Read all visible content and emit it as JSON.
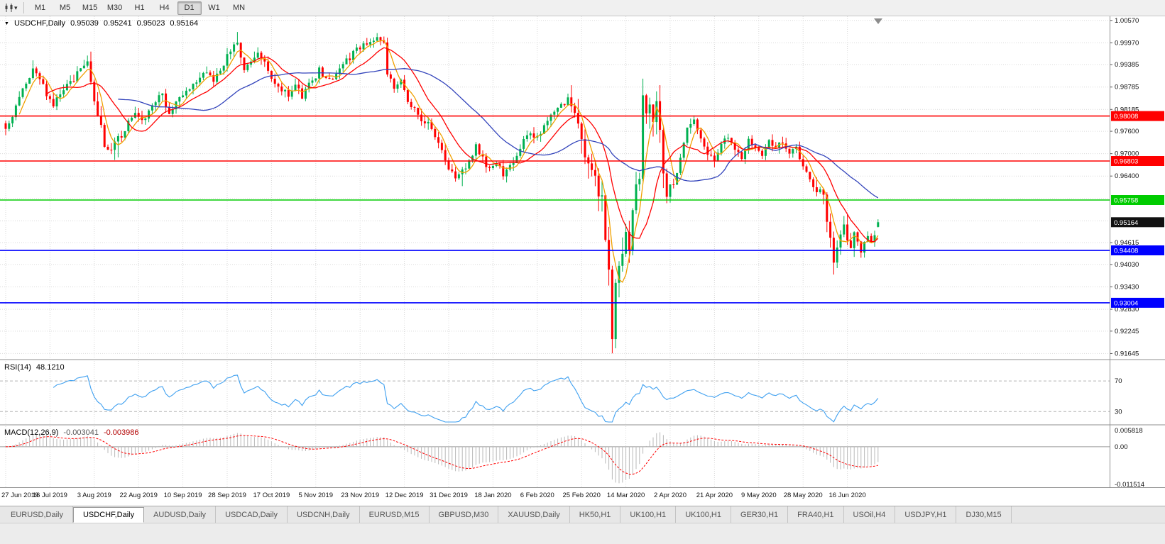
{
  "toolbar": {
    "timeframes": [
      "M1",
      "M5",
      "M15",
      "M30",
      "H1",
      "H4",
      "D1",
      "W1",
      "MN"
    ],
    "active_timeframe": "D1"
  },
  "icons": {
    "collapse_pane": "▼",
    "chart_menu_caret": "▾",
    "shift_marker": "▼"
  },
  "chart_data": {
    "type": "candlestick",
    "symbol": "USDCHF",
    "period": "Daily",
    "title": {
      "symbol_period": "USDCHF,Daily",
      "open": "0.95039",
      "high": "0.95241",
      "low": "0.95023",
      "close": "0.95164"
    },
    "price_axis": {
      "max": 1.0068,
      "min": 0.9152,
      "ticks": [
        [
          "1.00570",
          1.0057
        ],
        [
          "0.99970",
          0.9997
        ],
        [
          "0.99385",
          0.99385
        ],
        [
          "0.98785",
          0.98785
        ],
        [
          "0.98185",
          0.98185
        ],
        [
          "0.97600",
          0.976
        ],
        [
          "0.97000",
          0.97
        ],
        [
          "0.96400",
          0.964
        ],
        [
          "0.94615",
          0.94615
        ],
        [
          "0.94030",
          0.9403
        ],
        [
          "0.93430",
          0.9343
        ],
        [
          "0.92830",
          0.9283
        ],
        [
          "0.92245",
          0.92245
        ],
        [
          "0.91645",
          0.91645
        ]
      ],
      "hidden_ticks": [
        0.958,
        0.952
      ]
    },
    "date_axis": {
      "labels": [
        "27 Jun 2019",
        "16 Jul 2019",
        "3 Aug 2019",
        "22 Aug 2019",
        "10 Sep 2019",
        "28 Sep 2019",
        "17 Oct 2019",
        "5 Nov 2019",
        "23 Nov 2019",
        "12 Dec 2019",
        "31 Dec 2019",
        "18 Jan 2020",
        "6 Feb 2020",
        "25 Feb 2020",
        "14 Mar 2020",
        "2 Apr 2020",
        "21 Apr 2020",
        "9 May 2020",
        "28 May 2020",
        "16 Jun 2020"
      ],
      "bars_per_label": 13
    },
    "candles": {
      "count": 257,
      "up_color": "#00b050",
      "down_color": "#ff0000",
      "last_ohlc": [
        0.95039,
        0.95241,
        0.95023,
        0.95164
      ],
      "anchors": [
        [
          0,
          0.9768
        ],
        [
          3,
          0.9825
        ],
        [
          6,
          0.9888
        ],
        [
          8,
          0.9932
        ],
        [
          10,
          0.9895
        ],
        [
          12,
          0.9862
        ],
        [
          14,
          0.983
        ],
        [
          17,
          0.9868
        ],
        [
          20,
          0.99
        ],
        [
          24,
          0.9948
        ],
        [
          25,
          0.9885
        ],
        [
          27,
          0.9798
        ],
        [
          29,
          0.9728
        ],
        [
          31,
          0.9712
        ],
        [
          33,
          0.974
        ],
        [
          35,
          0.9766
        ],
        [
          38,
          0.9812
        ],
        [
          40,
          0.9788
        ],
        [
          42,
          0.9816
        ],
        [
          44,
          0.9842
        ],
        [
          46,
          0.9862
        ],
        [
          48,
          0.9806
        ],
        [
          50,
          0.9832
        ],
        [
          53,
          0.9872
        ],
        [
          56,
          0.9898
        ],
        [
          59,
          0.9922
        ],
        [
          61,
          0.9898
        ],
        [
          63,
          0.993
        ],
        [
          65,
          0.9958
        ],
        [
          68,
          1.0002
        ],
        [
          70,
          0.9925
        ],
        [
          72,
          0.9948
        ],
        [
          74,
          0.9968
        ],
        [
          76,
          0.9938
        ],
        [
          78,
          0.9906
        ],
        [
          80,
          0.9878
        ],
        [
          83,
          0.9858
        ],
        [
          85,
          0.9882
        ],
        [
          87,
          0.9856
        ],
        [
          89,
          0.9886
        ],
        [
          92,
          0.9922
        ],
        [
          95,
          0.9894
        ],
        [
          98,
          0.9926
        ],
        [
          101,
          0.9958
        ],
        [
          104,
          0.9988
        ],
        [
          107,
          0.9998
        ],
        [
          109,
          1.0008
        ],
        [
          111,
          0.9996
        ],
        [
          112,
          0.9912
        ],
        [
          114,
          0.9874
        ],
        [
          116,
          0.9892
        ],
        [
          118,
          0.9842
        ],
        [
          121,
          0.9802
        ],
        [
          124,
          0.9778
        ],
        [
          127,
          0.9732
        ],
        [
          130,
          0.9662
        ],
        [
          132,
          0.9628
        ],
        [
          134,
          0.965
        ],
        [
          136,
          0.9682
        ],
        [
          138,
          0.9718
        ],
        [
          140,
          0.9684
        ],
        [
          142,
          0.9656
        ],
        [
          144,
          0.9672
        ],
        [
          146,
          0.9648
        ],
        [
          148,
          0.9668
        ],
        [
          150,
          0.9702
        ],
        [
          152,
          0.9732
        ],
        [
          154,
          0.9752
        ],
        [
          156,
          0.9744
        ],
        [
          158,
          0.9772
        ],
        [
          160,
          0.9798
        ],
        [
          162,
          0.9818
        ],
        [
          165,
          0.9838
        ],
        [
          167,
          0.979
        ],
        [
          169,
          0.9732
        ],
        [
          171,
          0.9684
        ],
        [
          173,
          0.9646
        ],
        [
          174,
          0.9584
        ],
        [
          175,
          0.9568
        ],
        [
          176,
          0.9484
        ],
        [
          177,
          0.9388
        ],
        [
          178,
          0.9218
        ],
        [
          179,
          0.9338
        ],
        [
          180,
          0.9398
        ],
        [
          181,
          0.9454
        ],
        [
          182,
          0.9508
        ],
        [
          183,
          0.9438
        ],
        [
          184,
          0.9534
        ],
        [
          185,
          0.963
        ],
        [
          186,
          0.965
        ],
        [
          187,
          0.9852
        ],
        [
          188,
          0.9812
        ],
        [
          189,
          0.9846
        ],
        [
          190,
          0.979
        ],
        [
          191,
          0.9822
        ],
        [
          192,
          0.9762
        ],
        [
          193,
          0.9626
        ],
        [
          194,
          0.9594
        ],
        [
          196,
          0.9624
        ],
        [
          198,
          0.969
        ],
        [
          200,
          0.9762
        ],
        [
          202,
          0.9784
        ],
        [
          204,
          0.9744
        ],
        [
          206,
          0.9704
        ],
        [
          208,
          0.9678
        ],
        [
          210,
          0.9724
        ],
        [
          212,
          0.9748
        ],
        [
          214,
          0.9712
        ],
        [
          216,
          0.9688
        ],
        [
          218,
          0.9734
        ],
        [
          220,
          0.9718
        ],
        [
          222,
          0.9702
        ],
        [
          224,
          0.9734
        ],
        [
          226,
          0.9714
        ],
        [
          228,
          0.973
        ],
        [
          230,
          0.9704
        ],
        [
          232,
          0.9714
        ],
        [
          234,
          0.9674
        ],
        [
          236,
          0.9624
        ],
        [
          238,
          0.9604
        ],
        [
          240,
          0.9578
        ],
        [
          241,
          0.9524
        ],
        [
          242,
          0.9464
        ],
        [
          243,
          0.9414
        ],
        [
          244,
          0.945
        ],
        [
          245,
          0.949
        ],
        [
          246,
          0.9514
        ],
        [
          247,
          0.948
        ],
        [
          248,
          0.9454
        ],
        [
          249,
          0.9484
        ],
        [
          250,
          0.947
        ],
        [
          251,
          0.9444
        ],
        [
          252,
          0.947
        ],
        [
          253,
          0.9484
        ],
        [
          254,
          0.9456
        ],
        [
          255,
          0.9474
        ],
        [
          256,
          0.95164
        ]
      ],
      "wick_overrides": {
        "8": {
          "high": 0.995
        },
        "33": {
          "low": 0.969
        },
        "68": {
          "high": 1.0026
        },
        "109": {
          "high": 1.0023
        },
        "134": {
          "low": 0.9613
        },
        "178": {
          "low": 0.9165
        },
        "187": {
          "high": 0.9901
        },
        "243": {
          "low": 0.9376
        }
      },
      "vol_zones": [
        {
          "from": 25,
          "to": 34,
          "mult": 1.6
        },
        {
          "from": 165,
          "to": 194,
          "mult": 2.6
        },
        {
          "from": 238,
          "to": 250,
          "mult": 1.7
        }
      ]
    },
    "moving_averages": [
      {
        "period": 5,
        "color": "#f0a000"
      },
      {
        "period": 13,
        "color": "#ff0000"
      },
      {
        "period": 34,
        "color": "#3344bb"
      }
    ],
    "hlines": [
      {
        "label": "0.98008",
        "price": 0.98008,
        "color": "#ff0000"
      },
      {
        "label": "0.96803",
        "price": 0.96803,
        "color": "#ff0000"
      },
      {
        "label": "0.95758",
        "price": 0.95758,
        "color": "#00cc00"
      },
      {
        "label": "0.94408",
        "price": 0.94408,
        "color": "#0000ff"
      },
      {
        "label": "0.93004",
        "price": 0.93004,
        "color": "#0000ff"
      }
    ],
    "current_price": {
      "label": "0.95164",
      "price": 0.95164,
      "tag_color": "#111111"
    },
    "rsi": {
      "name": "RSI(14)",
      "value": "48.1210",
      "period": 14,
      "levels": [
        "70",
        "30"
      ],
      "color": "#3fa0f0"
    },
    "macd": {
      "name": "MACD(12,26,9)",
      "main_value": "-0.003041",
      "signal_value": "-0.003986",
      "axis_max": "0.005818",
      "axis_zero": "0.00",
      "axis_min": "-0.011514",
      "hist_color": "#b8b8b8",
      "signal_color": "#ff0000"
    }
  },
  "tabs": [
    {
      "label": "EURUSD,Daily"
    },
    {
      "label": "USDCHF,Daily",
      "active": true
    },
    {
      "label": "AUDUSD,Daily"
    },
    {
      "label": "USDCAD,Daily"
    },
    {
      "label": "USDCNH,Daily"
    },
    {
      "label": "EURUSD,M15"
    },
    {
      "label": "GBPUSD,M30"
    },
    {
      "label": "XAUUSD,Daily"
    },
    {
      "label": "HK50,H1"
    },
    {
      "label": "UK100,H1"
    },
    {
      "label": "UK100,H1"
    },
    {
      "label": "GER30,H1"
    },
    {
      "label": "FRA40,H1"
    },
    {
      "label": "USOil,H4"
    },
    {
      "label": "USDJPY,H1"
    },
    {
      "label": "DJ30,M15"
    }
  ]
}
